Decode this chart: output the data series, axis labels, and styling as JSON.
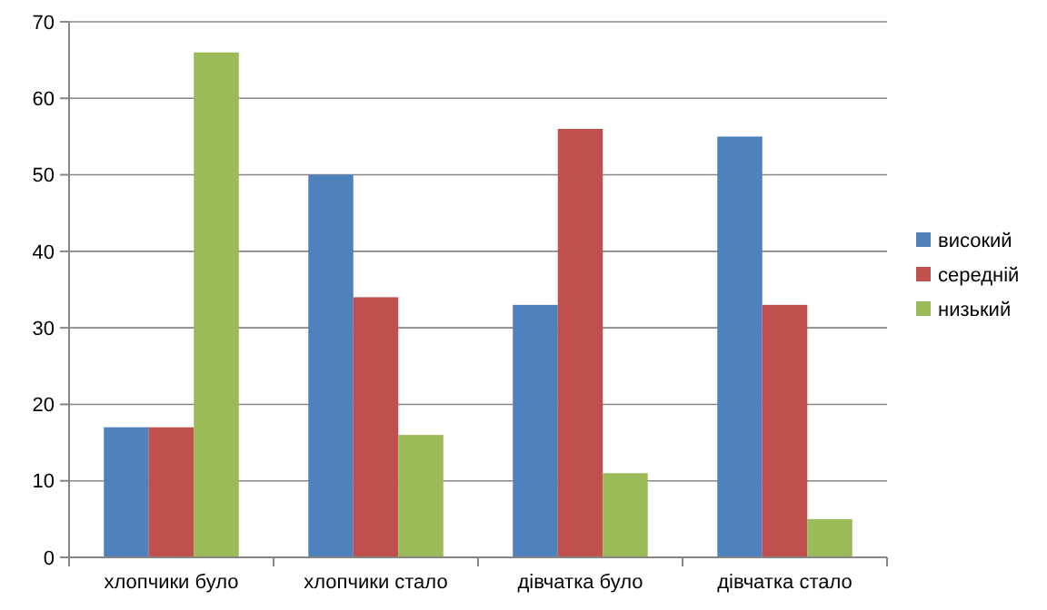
{
  "chart_data": {
    "type": "bar",
    "categories": [
      "хлопчики було",
      "хлопчики стало",
      "дівчатка було",
      "дівчатка стало"
    ],
    "series": [
      {
        "name": "високий",
        "color": "#4f81bd",
        "values": [
          17,
          50,
          33,
          55
        ]
      },
      {
        "name": "середній",
        "color": "#c0504d",
        "values": [
          17,
          34,
          56,
          33
        ]
      },
      {
        "name": "низький",
        "color": "#9bbb59",
        "values": [
          66,
          16,
          11,
          5
        ]
      }
    ],
    "ylim": [
      0,
      70
    ],
    "yticks": [
      0,
      10,
      20,
      30,
      40,
      50,
      60,
      70
    ],
    "grid": "y",
    "legend": "right"
  }
}
